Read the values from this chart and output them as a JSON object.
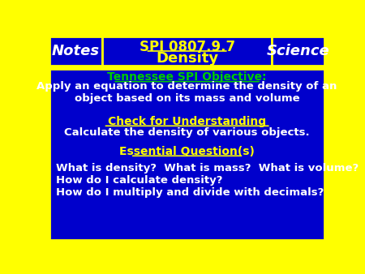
{
  "bg_color": "#FFFF00",
  "header_bg": "#0000CC",
  "body_bg": "#0000CC",
  "header_left_text": "Notes",
  "header_center_line1": "SPI 0807.9.7",
  "header_center_line2": "Density",
  "header_right_text": "Science",
  "header_text_color": "#FFFFFF",
  "header_center_color": "#FFFF00",
  "tn_label": "Tennessee SPI Objective:",
  "tn_label_color": "#00CC00",
  "tn_body": "Apply an equation to determine the density of an\nobject based on its mass and volume",
  "tn_body_color": "#FFFFFF",
  "check_label": "Check for Understanding",
  "check_label_color": "#FFFF00",
  "check_body": "Calculate the density of various objects.",
  "check_body_color": "#FFFFFF",
  "eq_label": "Essential Question(s)",
  "eq_label_color": "#FFFF00",
  "eq_body": "What is density?  What is mass?  What is volume?\nHow do I calculate density?\nHow do I multiply and divide with decimals?",
  "eq_body_color": "#FFFFFF",
  "border_color": "#FFFF00",
  "border_width": 6
}
